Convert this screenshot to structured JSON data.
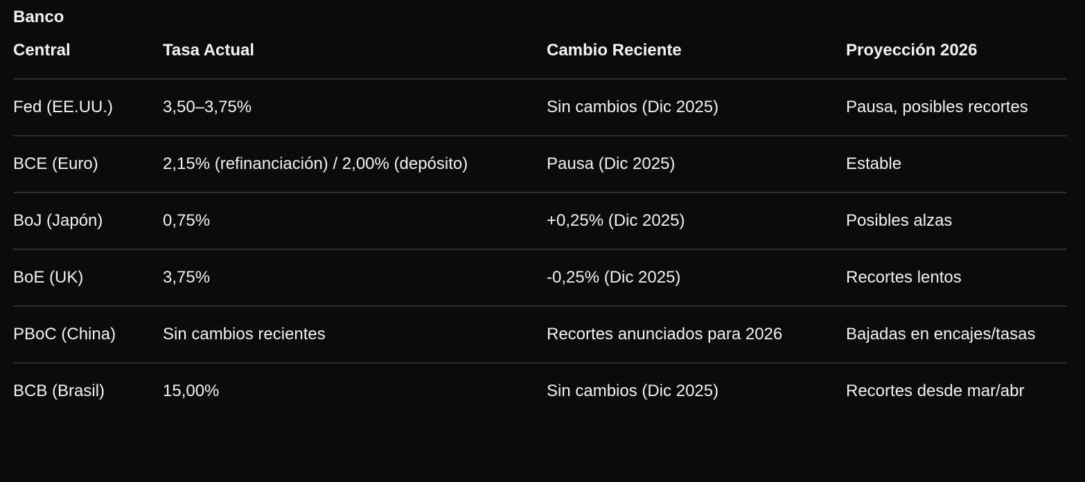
{
  "table": {
    "headers": [
      "Banco Central",
      "Tasa Actual",
      "Cambio Reciente",
      "Proyección 2026"
    ],
    "rows": [
      [
        "Fed (EE.UU.)",
        "3,50–3,75%",
        "Sin cambios (Dic 2025)",
        "Pausa, posibles recortes"
      ],
      [
        "BCE (Euro)",
        "2,15% (refinanciación) / 2,00% (depósito)",
        "Pausa (Dic 2025)",
        "Estable"
      ],
      [
        "BoJ (Japón)",
        "0,75%",
        "+0,25% (Dic 2025)",
        "Posibles alzas"
      ],
      [
        "BoE (UK)",
        "3,75%",
        "-0,25% (Dic 2025)",
        "Recortes lentos"
      ],
      [
        "PBoC (China)",
        "Sin cambios recientes",
        "Recortes anunciados para 2026",
        "Bajadas en encajes/tasas"
      ],
      [
        "BCB (Brasil)",
        "15,00%",
        "Sin cambios (Dic 2025)",
        "Recortes desde mar/abr"
      ]
    ]
  }
}
